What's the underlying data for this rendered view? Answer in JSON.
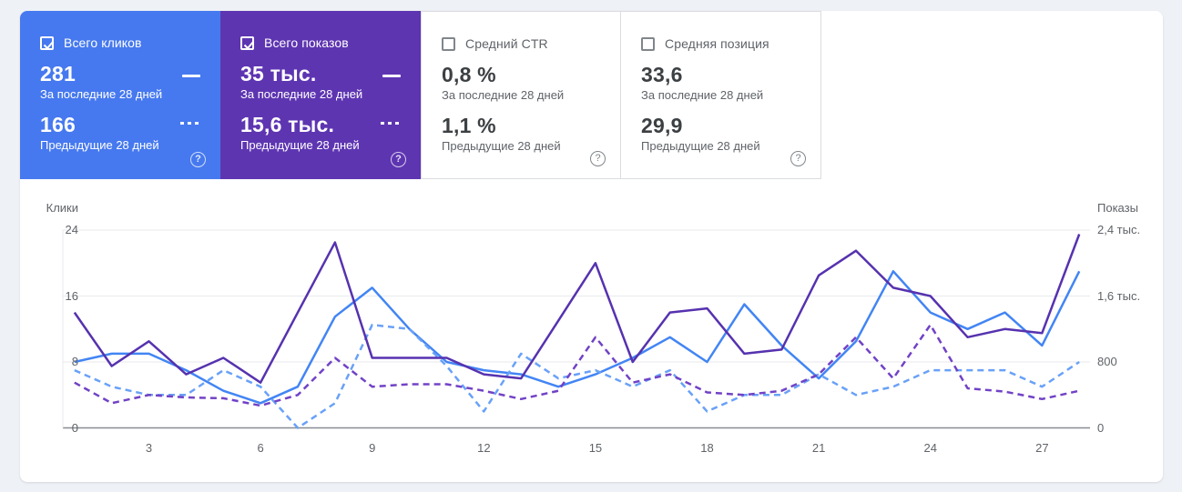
{
  "help_icon": "?",
  "cards": [
    {
      "label": "Всего кликов",
      "checked": true,
      "color": "#4679ef",
      "value_current": "281",
      "label_current": "За последние 28 дней",
      "value_previous": "166",
      "label_previous": "Предыдущие 28 дней"
    },
    {
      "label": "Всего показов",
      "checked": true,
      "color": "#5e35b1",
      "value_current": "35 тыс.",
      "label_current": "За последние 28 дней",
      "value_previous": "15,6 тыс.",
      "label_previous": "Предыдущие 28 дней"
    },
    {
      "label": "Средний CTR",
      "checked": false,
      "color": "#ffffff",
      "value_current": "0,8 %",
      "label_current": "За последние 28 дней",
      "value_previous": "1,1 %",
      "label_previous": "Предыдущие 28 дней"
    },
    {
      "label": "Средняя позиция",
      "checked": false,
      "color": "#ffffff",
      "value_current": "33,6",
      "label_current": "За последние 28 дней",
      "value_previous": "29,9",
      "label_previous": "Предыдущие 28 дней"
    }
  ],
  "chart_data": {
    "type": "line",
    "x": [
      1,
      2,
      3,
      4,
      5,
      6,
      7,
      8,
      9,
      10,
      11,
      12,
      13,
      14,
      15,
      16,
      17,
      18,
      19,
      20,
      21,
      22,
      23,
      24,
      25,
      26,
      27,
      28
    ],
    "x_tick_labels": [
      "3",
      "6",
      "9",
      "12",
      "15",
      "18",
      "21",
      "24",
      "27"
    ],
    "x_tick_days": [
      3,
      6,
      9,
      12,
      15,
      18,
      21,
      24,
      27
    ],
    "grid": true,
    "left_axis": {
      "title": "Клики",
      "range": [
        0,
        24
      ],
      "ticks": [
        0,
        8,
        16,
        24
      ],
      "tick_labels": [
        "0",
        "8",
        "16",
        "24"
      ]
    },
    "right_axis": {
      "title": "Показы",
      "range": [
        0,
        2400
      ],
      "ticks": [
        0,
        800,
        1600,
        2400
      ],
      "tick_labels": [
        "0",
        "800",
        "1,6 тыс.",
        "2,4 тыс."
      ]
    },
    "series": [
      {
        "name": "clicks_last_28_days",
        "axis": "left",
        "style": "solid",
        "color": "#4285f4",
        "values": [
          8,
          9,
          9,
          7,
          4.5,
          3,
          5,
          13.5,
          17,
          12,
          8,
          7,
          6.5,
          5,
          6.5,
          8.5,
          11,
          8,
          15,
          10,
          6,
          10.5,
          19,
          14,
          12,
          14,
          10,
          19
        ]
      },
      {
        "name": "clicks_previous_28_days",
        "axis": "left",
        "style": "dashed",
        "color": "#69a1f8",
        "values": [
          7,
          5,
          4,
          4,
          7,
          5,
          0,
          3,
          12.5,
          12,
          7.5,
          2,
          9,
          6,
          7,
          5,
          7,
          2,
          4,
          4,
          6.5,
          4,
          5,
          7,
          7,
          7,
          5,
          8
        ]
      },
      {
        "name": "impressions_previous_28_days",
        "axis": "right",
        "style": "dashed",
        "color": "#7142c6",
        "values": [
          550,
          300,
          400,
          370,
          360,
          270,
          400,
          850,
          500,
          530,
          530,
          450,
          350,
          450,
          1100,
          550,
          650,
          430,
          400,
          450,
          650,
          1100,
          600,
          1250,
          480,
          440,
          350,
          450
        ]
      },
      {
        "name": "impressions_last_28_days",
        "axis": "right",
        "style": "solid",
        "color": "#5632af",
        "values": [
          1400,
          750,
          1050,
          650,
          850,
          550,
          1400,
          2250,
          850,
          850,
          850,
          650,
          600,
          1300,
          2000,
          800,
          1400,
          1450,
          900,
          950,
          1850,
          2150,
          1700,
          1600,
          1100,
          1200,
          1150,
          2350
        ]
      }
    ]
  }
}
